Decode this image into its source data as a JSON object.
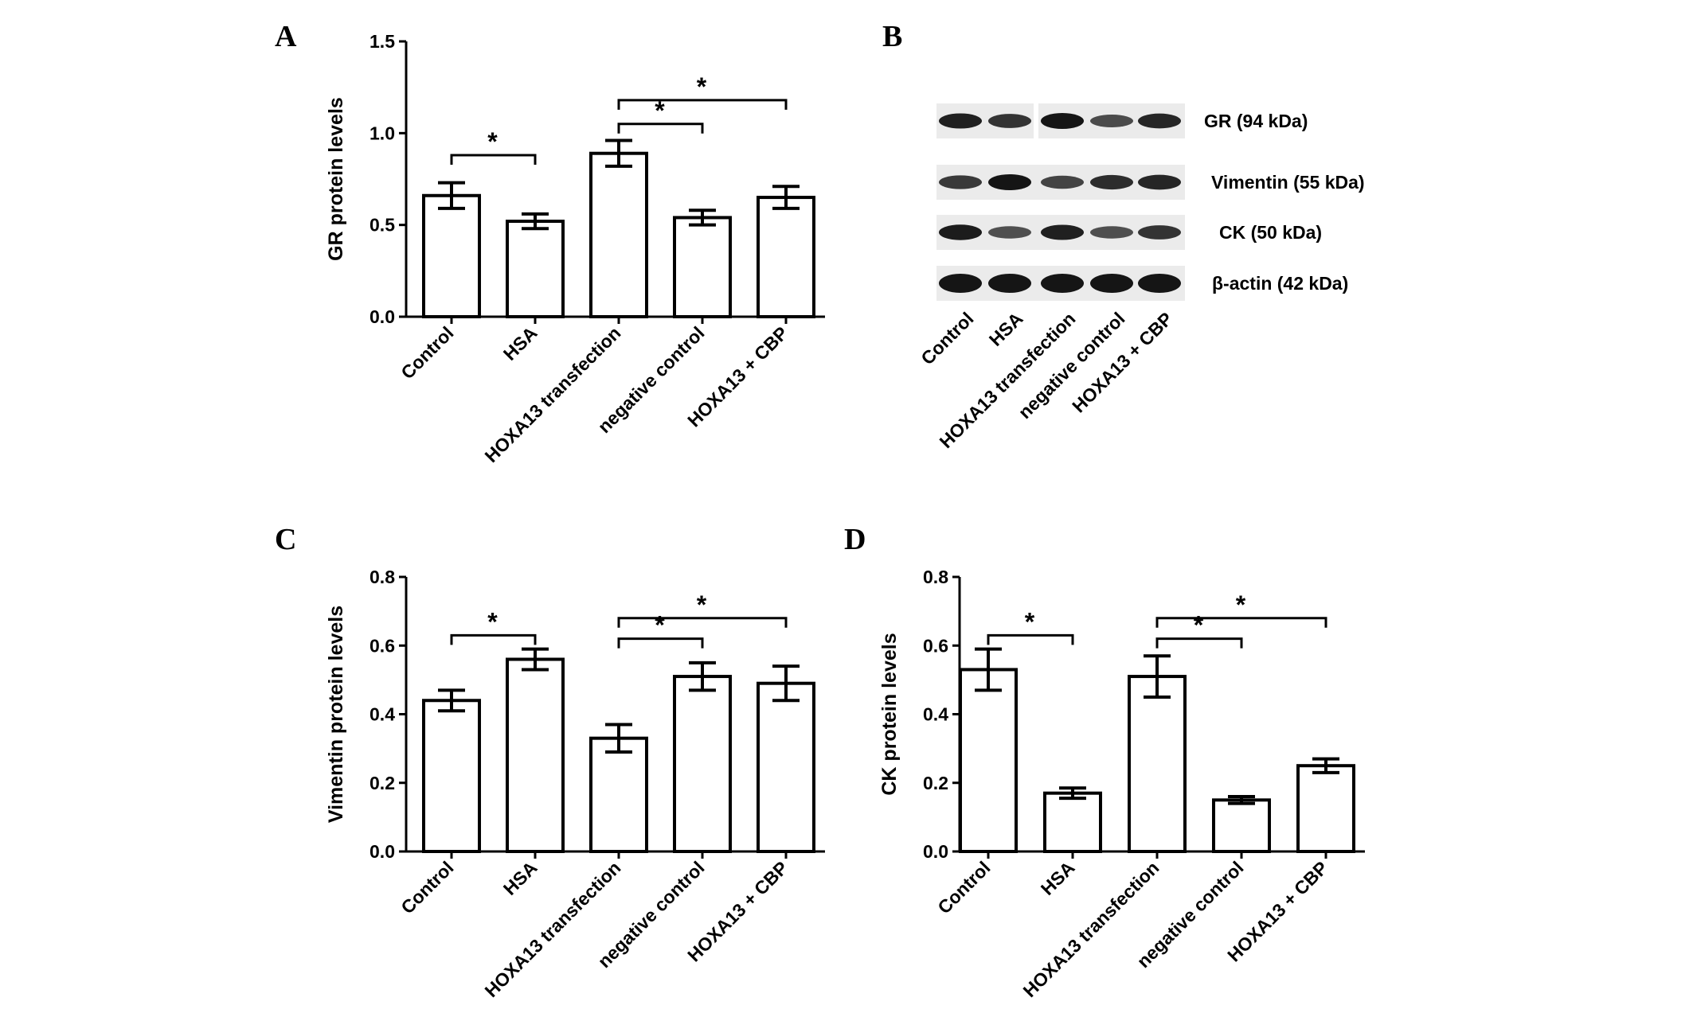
{
  "figure": {
    "groups": [
      "Control",
      "HSA",
      "HOXA13 transfection",
      "negative control",
      "HOXA13 + CBP"
    ]
  },
  "chart_data": [
    {
      "panel": "A",
      "type": "bar",
      "categories": [
        "Control",
        "HSA",
        "HOXA13 transfection",
        "negative control",
        "HOXA13 + CBP"
      ],
      "values": [
        0.66,
        0.52,
        0.89,
        0.54,
        0.65
      ],
      "errors": [
        0.07,
        0.04,
        0.07,
        0.04,
        0.06
      ],
      "ylabel": "GR protein levels",
      "ylim": [
        0,
        1.5
      ],
      "yticks": [
        "0.0",
        "0.5",
        "1.0",
        "1.5"
      ],
      "significance": [
        {
          "from": 0,
          "to": 1,
          "level": 0.88,
          "label": "*"
        },
        {
          "from": 2,
          "to": 3,
          "level": 1.05,
          "label": "*"
        },
        {
          "from": 2,
          "to": 4,
          "level": 1.18,
          "label": "*"
        }
      ]
    },
    {
      "panel": "C",
      "type": "bar",
      "categories": [
        "Control",
        "HSA",
        "HOXA13 transfection",
        "negative control",
        "HOXA13 + CBP"
      ],
      "values": [
        0.44,
        0.56,
        0.33,
        0.51,
        0.49
      ],
      "errors": [
        0.03,
        0.03,
        0.04,
        0.04,
        0.05
      ],
      "ylabel": "Vimentin protein levels",
      "ylim": [
        0,
        0.8
      ],
      "yticks": [
        "0.0",
        "0.2",
        "0.4",
        "0.6",
        "0.8"
      ],
      "significance": [
        {
          "from": 0,
          "to": 1,
          "level": 0.63,
          "label": "*"
        },
        {
          "from": 2,
          "to": 3,
          "level": 0.62,
          "label": "*"
        },
        {
          "from": 2,
          "to": 4,
          "level": 0.68,
          "label": "*"
        }
      ]
    },
    {
      "panel": "D",
      "type": "bar",
      "categories": [
        "Control",
        "HSA",
        "HOXA13 transfection",
        "negative control",
        "HOXA13 + CBP"
      ],
      "values": [
        0.53,
        0.17,
        0.51,
        0.15,
        0.25
      ],
      "errors": [
        0.06,
        0.015,
        0.06,
        0.01,
        0.02
      ],
      "ylabel": "CK protein levels",
      "ylim": [
        0,
        0.8
      ],
      "yticks": [
        "0.0",
        "0.2",
        "0.4",
        "0.6",
        "0.8"
      ],
      "significance": [
        {
          "from": 0,
          "to": 1,
          "level": 0.63,
          "label": "*"
        },
        {
          "from": 2,
          "to": 3,
          "level": 0.62,
          "label": "*"
        },
        {
          "from": 2,
          "to": 4,
          "level": 0.68,
          "label": "*"
        }
      ]
    }
  ],
  "panel_b": {
    "label": "B",
    "blots": [
      {
        "label": "GR (94 kDa)",
        "intensity": [
          0.9,
          0.75,
          1.0,
          0.55,
          0.85
        ]
      },
      {
        "label": "Vimentin (55 kDa)",
        "intensity": [
          0.7,
          1.0,
          0.6,
          0.8,
          0.85
        ]
      },
      {
        "label": "CK (50 kDa)",
        "intensity": [
          0.95,
          0.5,
          0.9,
          0.5,
          0.75
        ]
      },
      {
        "label": "β-actin (42 kDa)",
        "intensity": [
          1.0,
          1.0,
          1.0,
          1.0,
          1.0
        ]
      }
    ]
  }
}
